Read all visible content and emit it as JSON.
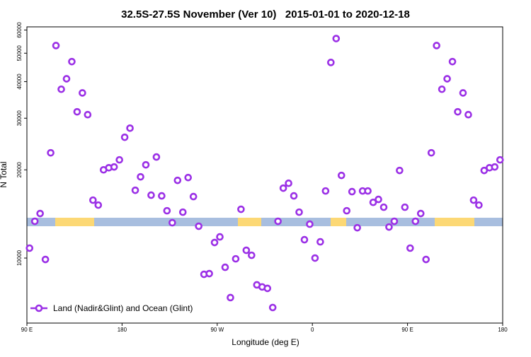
{
  "chart_data": {
    "type": "scatter",
    "title": "32.5S-27.5S November (Ver 10)   2015-01-01 to 2020-12-18",
    "x_label": "Longitude (deg E)",
    "y_label": "N Total",
    "log_y": true,
    "xlim": [
      90,
      540
    ],
    "xticks": [
      {
        "value": 90,
        "label": "90 E"
      },
      180,
      {
        "value": 270,
        "label": "90 W"
      },
      {
        "value": 360,
        "label": "0"
      },
      {
        "value": 450,
        "label": "90 E"
      },
      {
        "value": 540,
        "label": "180"
      }
    ],
    "ylim": [
      6000,
      61500
    ],
    "yticks": [
      10000,
      20000,
      30000,
      40000,
      50000,
      60000
    ],
    "legend": "bottom-left",
    "series": [
      {
        "name": "Land (Nadir&Glint) and Ocean (Glint)",
        "color": "#9b30e6",
        "x": [
          92.5,
          97.5,
          102.5,
          107.5,
          112.5,
          117.5,
          122.5,
          127.5,
          132.5,
          137.5,
          142.5,
          147.5,
          152.5,
          157.5,
          162.5,
          167.5,
          172.5,
          177.5,
          182.5,
          187.5,
          192.5,
          197.5,
          202.5,
          207.5,
          212.5,
          217.5,
          222.5,
          227.5,
          232.5,
          237.5,
          242.5,
          247.5,
          252.5,
          257.5,
          262.5,
          267.5,
          272.5,
          277.5,
          282.5,
          287.5,
          292.5,
          297.5,
          302.5,
          307.5,
          312.5,
          317.5,
          322.5,
          327.5,
          332.5,
          337.5,
          342.5,
          347.5,
          352.5,
          357.5,
          362.5,
          367.5,
          372.5,
          377.5,
          382.5,
          387.5,
          392.5,
          397.5,
          402.5,
          407.5,
          412.5,
          417.5,
          422.5,
          427.5,
          432.5,
          437.5,
          442.5,
          447.5,
          452.5,
          457.5,
          462.5,
          467.5,
          472.5,
          477.5,
          482.5,
          487.5,
          492.5,
          497.5,
          502.5,
          507.5,
          512.5,
          517.5,
          522.5,
          527.5,
          532.5,
          537.5
        ],
        "values": [
          10810,
          13350,
          14190,
          9890,
          22860,
          53100,
          37670,
          40900,
          46800,
          31550,
          36600,
          30850,
          15760,
          15160,
          20000,
          20330,
          20460,
          21630,
          25830,
          27750,
          17030,
          18930,
          20800,
          16390,
          22120,
          16300,
          14500,
          13200,
          18410,
          14340,
          18820,
          16210,
          12840,
          8800,
          8850,
          11300,
          11810,
          9300,
          7330,
          9940,
          14670,
          10630,
          10220,
          8100,
          7970,
          7880,
          6780,
          13350,
          17320,
          18000,
          16300,
          14340,
          11550,
          13050,
          10000,
          11360,
          16940,
          46500,
          56100,
          19140,
          14500,
          16850,
          12690,
          16940,
          16940,
          15490,
          15850,
          14910,
          12760,
          13350,
          19900,
          14910,
          10810,
          13350,
          14190,
          9890,
          22860,
          53100,
          37670,
          40900,
          46800,
          31550,
          36600,
          30850,
          15760,
          15160,
          19900,
          20330,
          20460,
          21630
        ]
      }
    ]
  }
}
